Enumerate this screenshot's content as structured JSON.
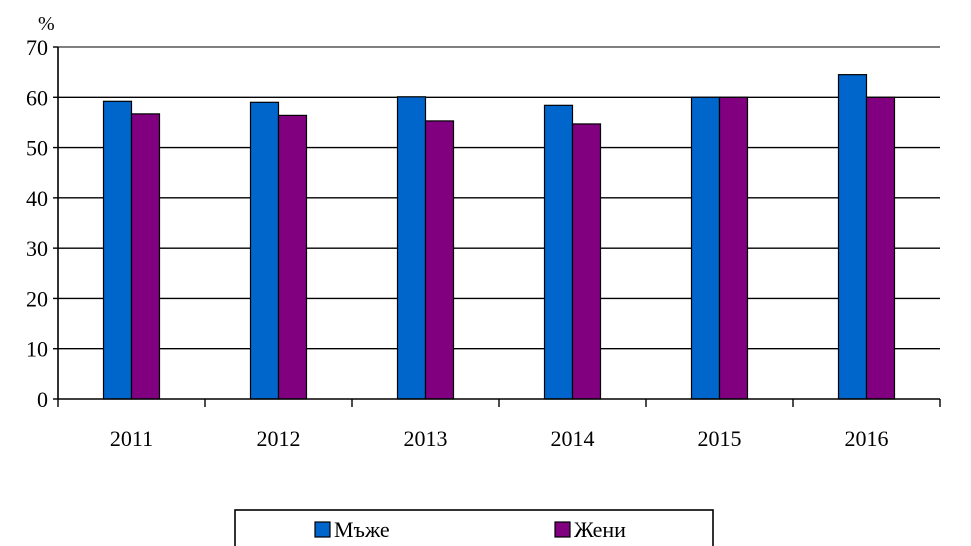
{
  "chart_data": {
    "type": "bar",
    "unit_label": "%",
    "categories": [
      "2011",
      "2012",
      "2013",
      "2014",
      "2015",
      "2016"
    ],
    "series": [
      {
        "name": "Мъже",
        "color": "#0066CC",
        "values": [
          59.2,
          59.0,
          60.1,
          58.4,
          60.0,
          64.5
        ]
      },
      {
        "name": "Жени",
        "color": "#800080",
        "values": [
          56.7,
          56.4,
          55.3,
          54.7,
          60.0,
          60.0
        ]
      }
    ],
    "ylim": [
      0,
      70
    ],
    "yticks": [
      0,
      10,
      20,
      30,
      40,
      50,
      60,
      70
    ],
    "grid": true,
    "legend_position": "bottom-center"
  }
}
